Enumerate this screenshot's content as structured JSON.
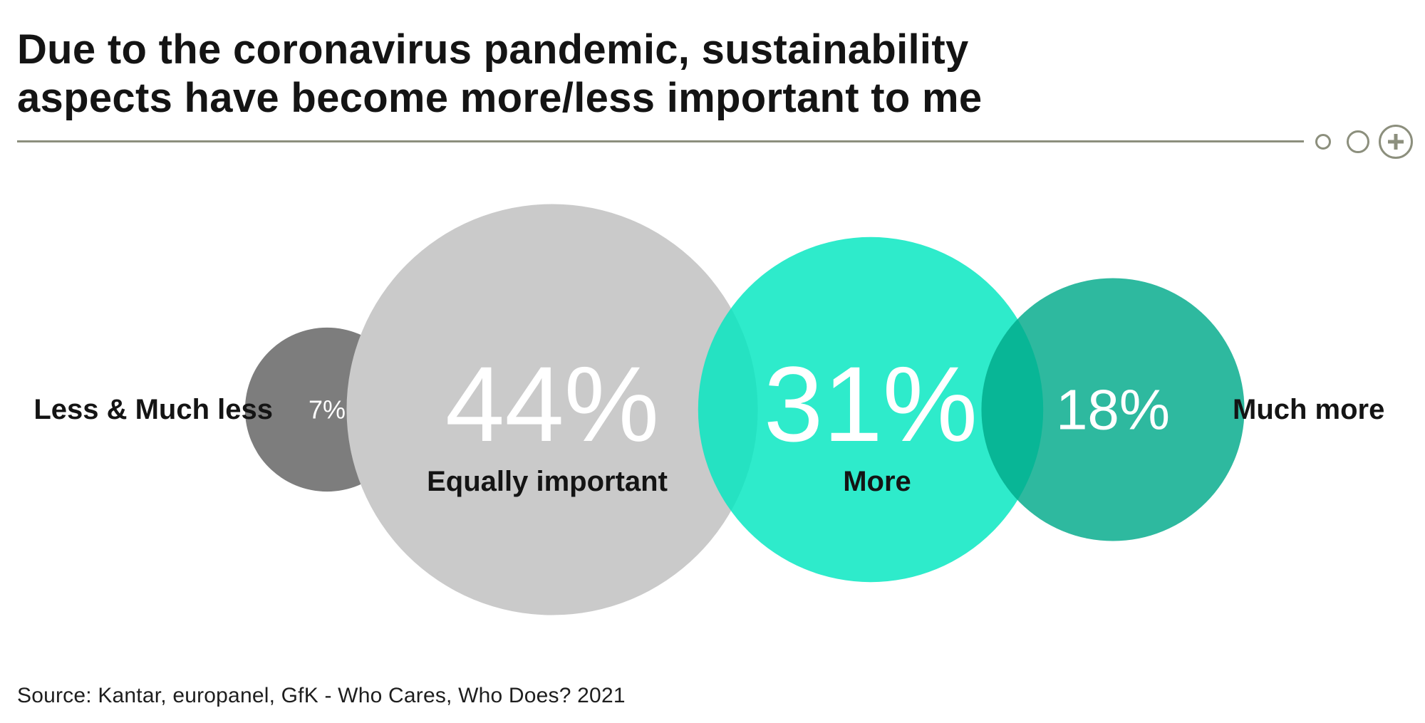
{
  "title": {
    "line1": "Due to the coronavirus pandemic, sustainability",
    "line2": "aspects have become more/less important to me"
  },
  "header_controls": [
    "circle-small-icon",
    "circle-medium-icon",
    "plus-circle-icon"
  ],
  "colors": {
    "less": "#7d7d7d",
    "equal": "#cacaca",
    "more": "#00e6c0",
    "much_more": "#00a98a",
    "divider": "#8c8f7d"
  },
  "chart_data": {
    "type": "bubble",
    "unit": "%",
    "series": [
      {
        "category": "Less & Much less",
        "value": 7,
        "label": "7%"
      },
      {
        "category": "Equally important",
        "value": 44,
        "label": "44%"
      },
      {
        "category": "More",
        "value": 31,
        "label": "31%"
      },
      {
        "category": "Much more",
        "value": 18,
        "label": "18%"
      }
    ]
  },
  "source": "Source: Kantar, europanel, GfK - Who Cares, Who Does? 2021"
}
